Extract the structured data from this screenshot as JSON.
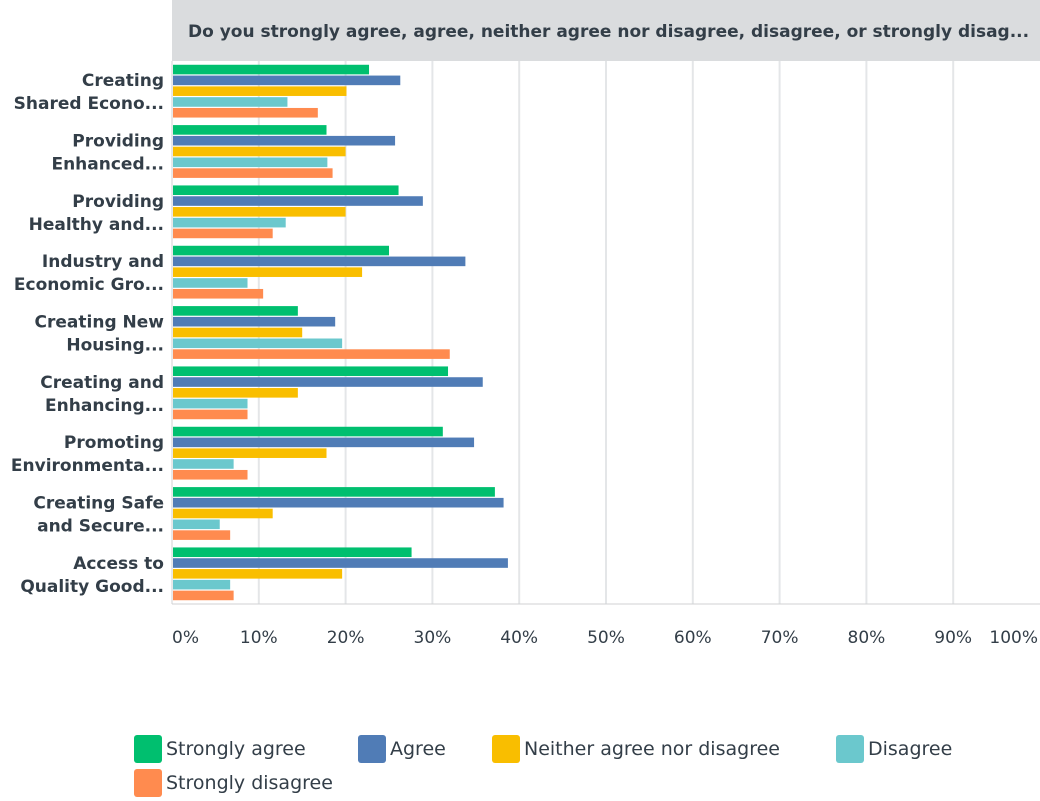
{
  "chart_data": {
    "type": "bar",
    "orientation": "horizontal",
    "title": "Do you strongly agree, agree, neither agree nor disagree, disagree, or strongly disag...",
    "categories": [
      "Creating Shared Econo...",
      "Providing Enhanced...",
      "Providing Healthy and...",
      "Industry and Economic Gro...",
      "Creating New Housing...",
      "Creating and Enhancing...",
      "Promoting Environmenta...",
      "Creating Safe and Secure...",
      "Access to Quality Good..."
    ],
    "category_lines": [
      [
        "Creating",
        "Shared Econo..."
      ],
      [
        "Providing",
        "Enhanced..."
      ],
      [
        "Providing",
        "Healthy and..."
      ],
      [
        "Industry and",
        "Economic Gro..."
      ],
      [
        "Creating New",
        "Housing..."
      ],
      [
        "Creating and",
        "Enhancing..."
      ],
      [
        "Promoting",
        "Environmenta..."
      ],
      [
        "Creating Safe",
        "and Secure..."
      ],
      [
        "Access to",
        "Quality Good..."
      ]
    ],
    "series": [
      {
        "name": "Strongly agree",
        "color": "#00bf6f",
        "values": [
          22.7,
          17.8,
          26.1,
          25.0,
          14.5,
          31.8,
          31.2,
          37.2,
          27.6
        ]
      },
      {
        "name": "Agree",
        "color": "#507cb6",
        "values": [
          26.3,
          25.7,
          28.9,
          33.8,
          18.8,
          35.8,
          34.8,
          38.2,
          38.7
        ]
      },
      {
        "name": "Neither agree nor disagree",
        "color": "#f9be00",
        "values": [
          20.1,
          20.0,
          20.0,
          21.9,
          15.0,
          14.5,
          17.8,
          11.6,
          19.6
        ]
      },
      {
        "name": "Disagree",
        "color": "#6bc8cd",
        "values": [
          13.3,
          17.9,
          13.1,
          8.7,
          19.6,
          8.7,
          7.1,
          5.5,
          6.7
        ]
      },
      {
        "name": "Strongly disagree",
        "color": "#ff8b4f",
        "values": [
          16.8,
          18.5,
          11.6,
          10.5,
          32.0,
          8.7,
          8.7,
          6.7,
          7.1
        ]
      }
    ],
    "x_ticks": [
      "0%",
      "10%",
      "20%",
      "30%",
      "40%",
      "50%",
      "60%",
      "70%",
      "80%",
      "90%",
      "100%"
    ],
    "xlim": [
      0,
      100
    ],
    "xlabel": "",
    "ylabel": "",
    "grid": true,
    "legend_position": "bottom"
  }
}
